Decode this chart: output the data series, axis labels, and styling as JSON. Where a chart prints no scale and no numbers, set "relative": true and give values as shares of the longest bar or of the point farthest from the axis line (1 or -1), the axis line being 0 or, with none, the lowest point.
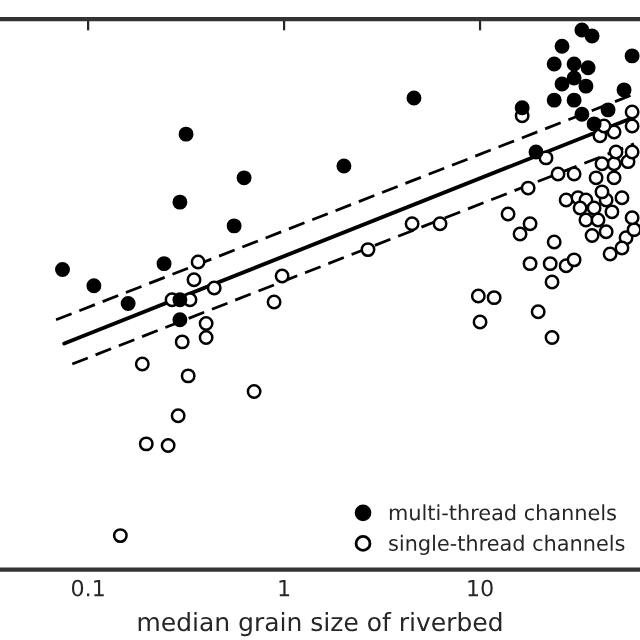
{
  "chart_data": {
    "type": "scatter",
    "xlabel": "median grain size of riverbed",
    "log": "x",
    "relative": true,
    "xlim": [
      0.0355,
      65.5
    ],
    "xticks": [
      0.1,
      1,
      10
    ],
    "grid": false,
    "legend": "bottom right",
    "series": [
      {
        "name": "multi-thread channels",
        "marker": "circle",
        "color": "#000000",
        "x": [
          0.074,
          0.107,
          0.16,
          0.244,
          0.294,
          0.316,
          0.625,
          0.556,
          0.294,
          2.02,
          4.6,
          16.4,
          19.3,
          26.2,
          23.9,
          30.2,
          35.6,
          26.2,
          30.2,
          34.7,
          23.9,
          30.2,
          33.1,
          37.3,
          33.1,
          38.2,
          45.0,
          54.3,
          59.7,
          0.294
        ],
        "values": [
          0.556,
          0.526,
          0.493,
          0.567,
          0.681,
          0.807,
          0.726,
          0.637,
          0.5,
          0.748,
          0.874,
          0.856,
          0.774,
          0.97,
          0.937,
          0.937,
          0.93,
          0.9,
          0.911,
          0.896,
          0.87,
          0.87,
          1.0,
          0.989,
          0.844,
          0.826,
          0.852,
          0.889,
          0.952,
          0.463
        ]
      },
      {
        "name": "single-thread channels",
        "marker": "circle",
        "color": "#ffffff",
        "x": [
          0.364,
          0.347,
          0.44,
          0.977,
          0.889,
          2.68,
          4.5,
          6.25,
          13.9,
          18.0,
          16.0,
          17.6,
          21.7,
          16.4,
          25.0,
          30.2,
          23.9,
          18.0,
          22.8,
          27.5,
          30.2,
          23.3,
          9.8,
          11.8,
          19.8,
          27.5,
          31.6,
          34.7,
          32.4,
          38.2,
          34.7,
          40.0,
          44.0,
          53.0,
          47.1,
          37.3,
          44.0,
          46.1,
          55.6,
          53.0,
          61.1,
          59.7,
          39.1,
          48.3,
          41.9,
          48.3,
          41.9,
          56.9,
          49.4,
          59.7,
          40.9,
          48.3,
          59.7,
          59.7,
          42.9,
          0.331,
          0.268,
          0.4,
          0.4,
          0.302,
          0.189,
          0.324,
          0.703,
          0.288,
          0.198,
          0.256,
          0.146,
          10.0,
          23.3
        ],
        "values": [
          0.57,
          0.537,
          0.522,
          0.544,
          0.496,
          0.593,
          0.641,
          0.641,
          0.659,
          0.641,
          0.622,
          0.707,
          0.763,
          0.841,
          0.733,
          0.733,
          0.607,
          0.567,
          0.567,
          0.563,
          0.574,
          0.533,
          0.507,
          0.504,
          0.478,
          0.685,
          0.689,
          0.685,
          0.67,
          0.67,
          0.648,
          0.648,
          0.685,
          0.689,
          0.663,
          0.619,
          0.626,
          0.585,
          0.615,
          0.596,
          0.63,
          0.652,
          0.726,
          0.726,
          0.7,
          0.752,
          0.752,
          0.756,
          0.774,
          0.774,
          0.804,
          0.811,
          0.822,
          0.848,
          0.822,
          0.5,
          0.5,
          0.456,
          0.43,
          0.422,
          0.381,
          0.359,
          0.33,
          0.285,
          0.233,
          0.23,
          0.063,
          0.459,
          0.43
        ]
      },
      {
        "type": "line",
        "color": "#000000",
        "line_style": "solid",
        "x": [
          0.0755,
          59.7
        ],
        "values": [
          0.419,
          0.837
        ]
      },
      {
        "type": "line",
        "color": "#000000",
        "line_style": "dashed",
        "x": [
          0.0686,
          61.0
        ],
        "values": [
          0.463,
          0.881
        ]
      },
      {
        "type": "line",
        "color": "#000000",
        "line_style": "dashed",
        "x": [
          0.083,
          61.0
        ],
        "values": [
          0.381,
          0.789
        ]
      }
    ]
  }
}
